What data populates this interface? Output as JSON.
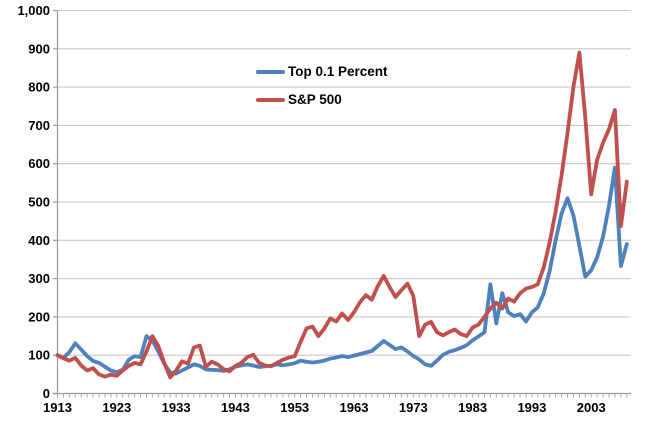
{
  "chart_data": {
    "type": "line",
    "title": "",
    "xlabel": "",
    "ylabel": "",
    "ylim": [
      0,
      1000
    ],
    "y_step": 100,
    "grid": true,
    "legend_position": "inside-top-center",
    "y_tick_labels": [
      "0",
      "100",
      "200",
      "300",
      "400",
      "500",
      "600",
      "700",
      "800",
      "900",
      "1,000"
    ],
    "x_tick_labels": [
      "1913",
      "1923",
      "1933",
      "1943",
      "1953",
      "1963",
      "1973",
      "1983",
      "1993",
      "2003"
    ],
    "x_tick_years": [
      1913,
      1923,
      1933,
      1943,
      1953,
      1963,
      1973,
      1983,
      1993,
      2003
    ],
    "years": [
      1913,
      1914,
      1915,
      1916,
      1917,
      1918,
      1919,
      1920,
      1921,
      1922,
      1923,
      1924,
      1925,
      1926,
      1927,
      1928,
      1929,
      1930,
      1931,
      1932,
      1933,
      1934,
      1935,
      1936,
      1937,
      1938,
      1939,
      1940,
      1941,
      1942,
      1943,
      1944,
      1945,
      1946,
      1947,
      1948,
      1949,
      1950,
      1951,
      1952,
      1953,
      1954,
      1955,
      1956,
      1957,
      1958,
      1959,
      1960,
      1961,
      1962,
      1963,
      1964,
      1965,
      1966,
      1967,
      1968,
      1969,
      1970,
      1971,
      1972,
      1973,
      1974,
      1975,
      1976,
      1977,
      1978,
      1979,
      1980,
      1981,
      1982,
      1983,
      1984,
      1985,
      1986,
      1987,
      1988,
      1989,
      1990,
      1991,
      1992,
      1993,
      1994,
      1995,
      1996,
      1997,
      1998,
      1999,
      2000,
      2001,
      2002,
      2003,
      2004,
      2005,
      2006,
      2007,
      2008,
      2009
    ],
    "series": [
      {
        "name": "Top 0.1 Percent",
        "color": "#4F81BD",
        "values": [
          100,
          93,
          108,
          131,
          115,
          97,
          85,
          80,
          70,
          60,
          56,
          62,
          88,
          97,
          95,
          150,
          138,
          110,
          78,
          55,
          52,
          60,
          68,
          76,
          72,
          63,
          62,
          61,
          59,
          63,
          70,
          73,
          76,
          73,
          69,
          71,
          72,
          76,
          74,
          76,
          79,
          86,
          83,
          81,
          83,
          86,
          91,
          94,
          98,
          95,
          99,
          103,
          107,
          111,
          124,
          137,
          127,
          116,
          120,
          110,
          98,
          89,
          76,
          72,
          86,
          101,
          109,
          113,
          119,
          126,
          139,
          149,
          160,
          285,
          183,
          262,
          212,
          202,
          207,
          188,
          212,
          225,
          262,
          320,
          400,
          470,
          510,
          465,
          385,
          305,
          322,
          355,
          410,
          490,
          590,
          333,
          390
        ]
      },
      {
        "name": "S&P 500",
        "color": "#C0504D",
        "values": [
          100,
          92,
          86,
          93,
          73,
          60,
          66,
          50,
          44,
          49,
          46,
          60,
          72,
          80,
          76,
          110,
          150,
          124,
          80,
          42,
          60,
          84,
          78,
          120,
          125,
          70,
          83,
          76,
          64,
          58,
          72,
          80,
          95,
          101,
          80,
          73,
          71,
          80,
          88,
          94,
          97,
          135,
          170,
          175,
          150,
          170,
          196,
          188,
          209,
          192,
          212,
          238,
          257,
          245,
          280,
          307,
          278,
          252,
          270,
          287,
          255,
          150,
          180,
          187,
          160,
          152,
          160,
          167,
          155,
          150,
          172,
          180,
          200,
          222,
          237,
          222,
          248,
          240,
          262,
          274,
          278,
          285,
          330,
          395,
          475,
          570,
          680,
          800,
          890,
          720,
          520,
          610,
          655,
          690,
          740,
          437,
          553
        ]
      }
    ],
    "colors": {
      "gridline": "#C9C9C9",
      "axis": "#9A9A9A",
      "tick": "#ABABAB",
      "label_text": "#000000",
      "background": "#FFFFFF"
    }
  },
  "legend": {
    "items": [
      {
        "label": "Top 0.1 Percent",
        "color": "#4F81BD"
      },
      {
        "label": "S&P 500",
        "color": "#C0504D"
      }
    ]
  }
}
